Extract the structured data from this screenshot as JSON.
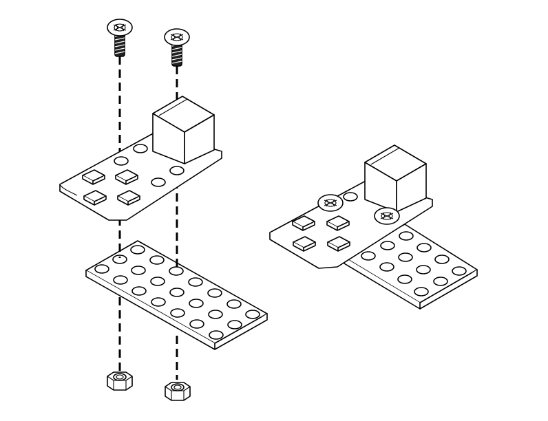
{
  "diagram": {
    "type": "exploded-assembly",
    "background": "#ffffff",
    "line_color": "#000000",
    "views": [
      {
        "name": "exploded-view",
        "parts": [
          "screw",
          "screw",
          "module-board-with-cube-connector",
          "hole-plate",
          "hex-nut",
          "hex-nut"
        ]
      },
      {
        "name": "assembled-view",
        "parts": [
          "module-board-with-cube-connector",
          "hole-plate",
          "screw-head",
          "screw-head"
        ]
      }
    ]
  }
}
